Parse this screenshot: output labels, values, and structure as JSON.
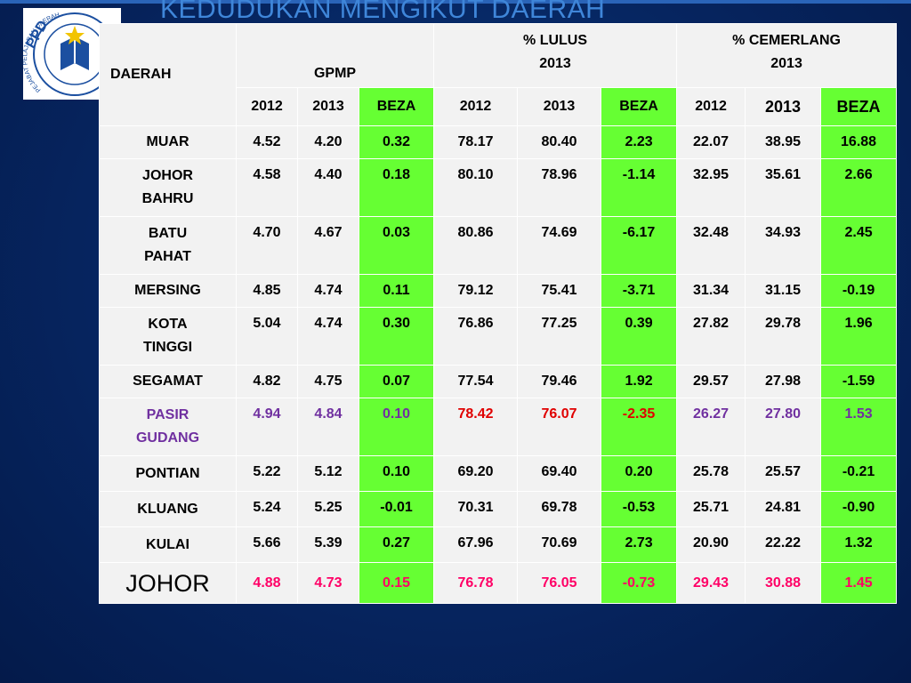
{
  "slide": {
    "title": "KEDUDUKAN MENGIKUT DAERAH",
    "logo_text": "PPD",
    "logo_ring_text": "PEJABAT PELAJARAN DAERAH"
  },
  "table": {
    "headers": {
      "daerah": "DAERAH",
      "gpmp": "GPMP",
      "lulus_line1": "%  LULUS",
      "lulus_line2": "2013",
      "cemerlang_line1": "% CEMERLANG",
      "cemerlang_line2": "2013"
    },
    "subheaders": [
      "2012",
      "2013",
      "BEZA",
      "2012",
      "2013",
      "BEZA",
      "2012",
      "2013",
      "BEZA"
    ],
    "rows": [
      {
        "name_line1": "MUAR",
        "name_line2": "",
        "values": [
          "4.52",
          "4.20",
          "0.32",
          "78.17",
          "80.40",
          "2.23",
          "22.07",
          "38.95",
          "16.88"
        ]
      },
      {
        "name_line1": "JOHOR",
        "name_line2": "BAHRU",
        "values": [
          "4.58",
          "4.40",
          "0.18",
          "80.10",
          "78.96",
          "-1.14",
          "32.95",
          "35.61",
          "2.66"
        ]
      },
      {
        "name_line1": "BATU",
        "name_line2": "PAHAT",
        "values": [
          "4.70",
          "4.67",
          "0.03",
          "80.86",
          "74.69",
          "-6.17",
          "32.48",
          "34.93",
          "2.45"
        ]
      },
      {
        "name_line1": "MERSING",
        "name_line2": "",
        "values": [
          "4.85",
          "4.74",
          "0.11",
          "79.12",
          "75.41",
          "-3.71",
          "31.34",
          "31.15",
          "-0.19"
        ]
      },
      {
        "name_line1": "KOTA",
        "name_line2": "TINGGI",
        "values": [
          "5.04",
          "4.74",
          "0.30",
          "76.86",
          "77.25",
          "0.39",
          "27.82",
          "29.78",
          "1.96"
        ]
      },
      {
        "name_line1": "SEGAMAT",
        "name_line2": "",
        "values": [
          "4.82",
          "4.75",
          "0.07",
          "77.54",
          "79.46",
          "1.92",
          "29.57",
          "27.98",
          "-1.59"
        ]
      },
      {
        "name_line1": "PASIR",
        "name_line2": "GUDANG",
        "values": [
          "4.94",
          "4.84",
          "0.10",
          "78.42",
          "76.07",
          "-2.35",
          "26.27",
          "27.80",
          "1.53"
        ]
      },
      {
        "name_line1": "PONTIAN",
        "name_line2": "",
        "values": [
          "5.22",
          "5.12",
          "0.10",
          "69.20",
          "69.40",
          "0.20",
          "25.78",
          "25.57",
          "-0.21"
        ]
      },
      {
        "name_line1": "KLUANG",
        "name_line2": "",
        "values": [
          "5.24",
          "5.25",
          "-0.01",
          "70.31",
          "69.78",
          "-0.53",
          "25.71",
          "24.81",
          "-0.90"
        ]
      },
      {
        "name_line1": "KULAI",
        "name_line2": "",
        "values": [
          "5.66",
          "5.39",
          "0.27",
          "67.96",
          "70.69",
          "2.73",
          "20.90",
          "22.22",
          "1.32"
        ]
      }
    ],
    "total": {
      "name": "JOHOR",
      "values": [
        "4.88",
        "4.73",
        "0.15",
        "76.78",
        "76.05",
        "-0.73",
        "29.43",
        "30.88",
        "1.45"
      ]
    }
  },
  "colors": {
    "background": "#062560",
    "header_blue": "#00aeef",
    "beza_green": "#66ff33",
    "cell_grey": "#f2f2f2",
    "subheader_grey": "#d3d3d3",
    "highlight_purple": "#7030a0",
    "highlight_red": "#e00000",
    "total_pink": "#ff0066"
  }
}
